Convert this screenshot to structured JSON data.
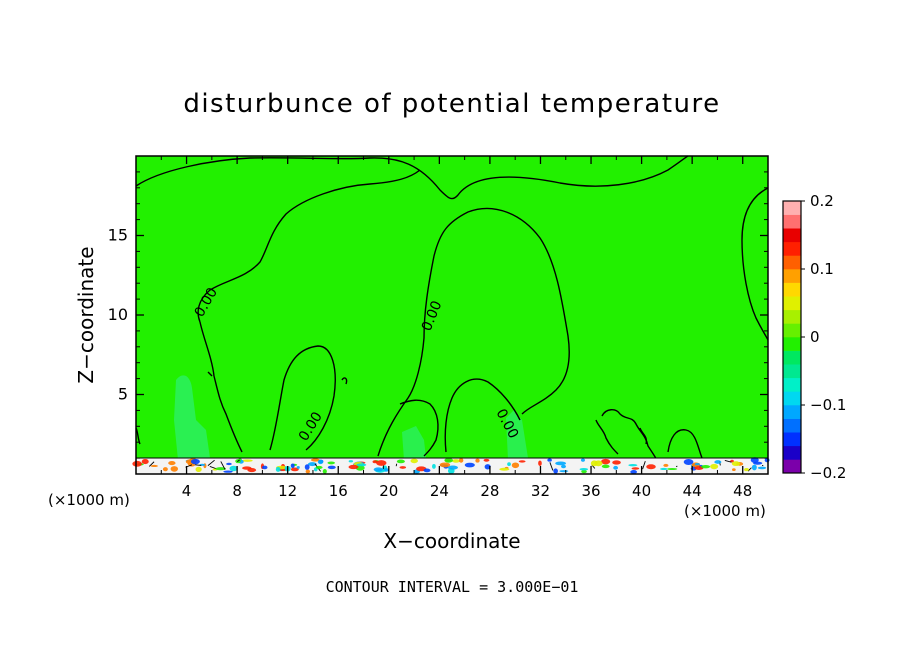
{
  "chart_data": {
    "type": "heatmap",
    "title": "disturbunce of potential temperature",
    "xlabel": "X−coordinate",
    "ylabel": "Z−coordinate",
    "x_unit": "(×1000 m)",
    "xlim": [
      0,
      50
    ],
    "ylim": [
      0,
      20
    ],
    "x_ticks": [
      "4",
      "8",
      "12",
      "16",
      "20",
      "24",
      "28",
      "32",
      "36",
      "40",
      "44",
      "48"
    ],
    "y_ticks": [
      "5",
      "10",
      "15"
    ],
    "contour_label": "0.00",
    "footer": "CONTOUR INTERVAL = 3.000E−01",
    "colorbar": {
      "min": -0.2,
      "max": 0.2,
      "tick_labels": [
        "0.2",
        "0.1",
        "0",
        "−0.1",
        "−0.2"
      ],
      "tick_values": [
        0.2,
        0.1,
        0,
        -0.1,
        -0.2
      ],
      "colors": [
        "#7b00aa",
        "#1a00c8",
        "#0030ff",
        "#0070ff",
        "#00a8ff",
        "#00d8f0",
        "#00f0c8",
        "#00e890",
        "#00e860",
        "#22f000",
        "#66f000",
        "#a8f000",
        "#e0f000",
        "#ffd800",
        "#ffa000",
        "#ff6000",
        "#ff2000",
        "#e80000",
        "#ff7070",
        "#ffb0b0"
      ]
    },
    "field_color": "#22f000",
    "grid": false
  }
}
